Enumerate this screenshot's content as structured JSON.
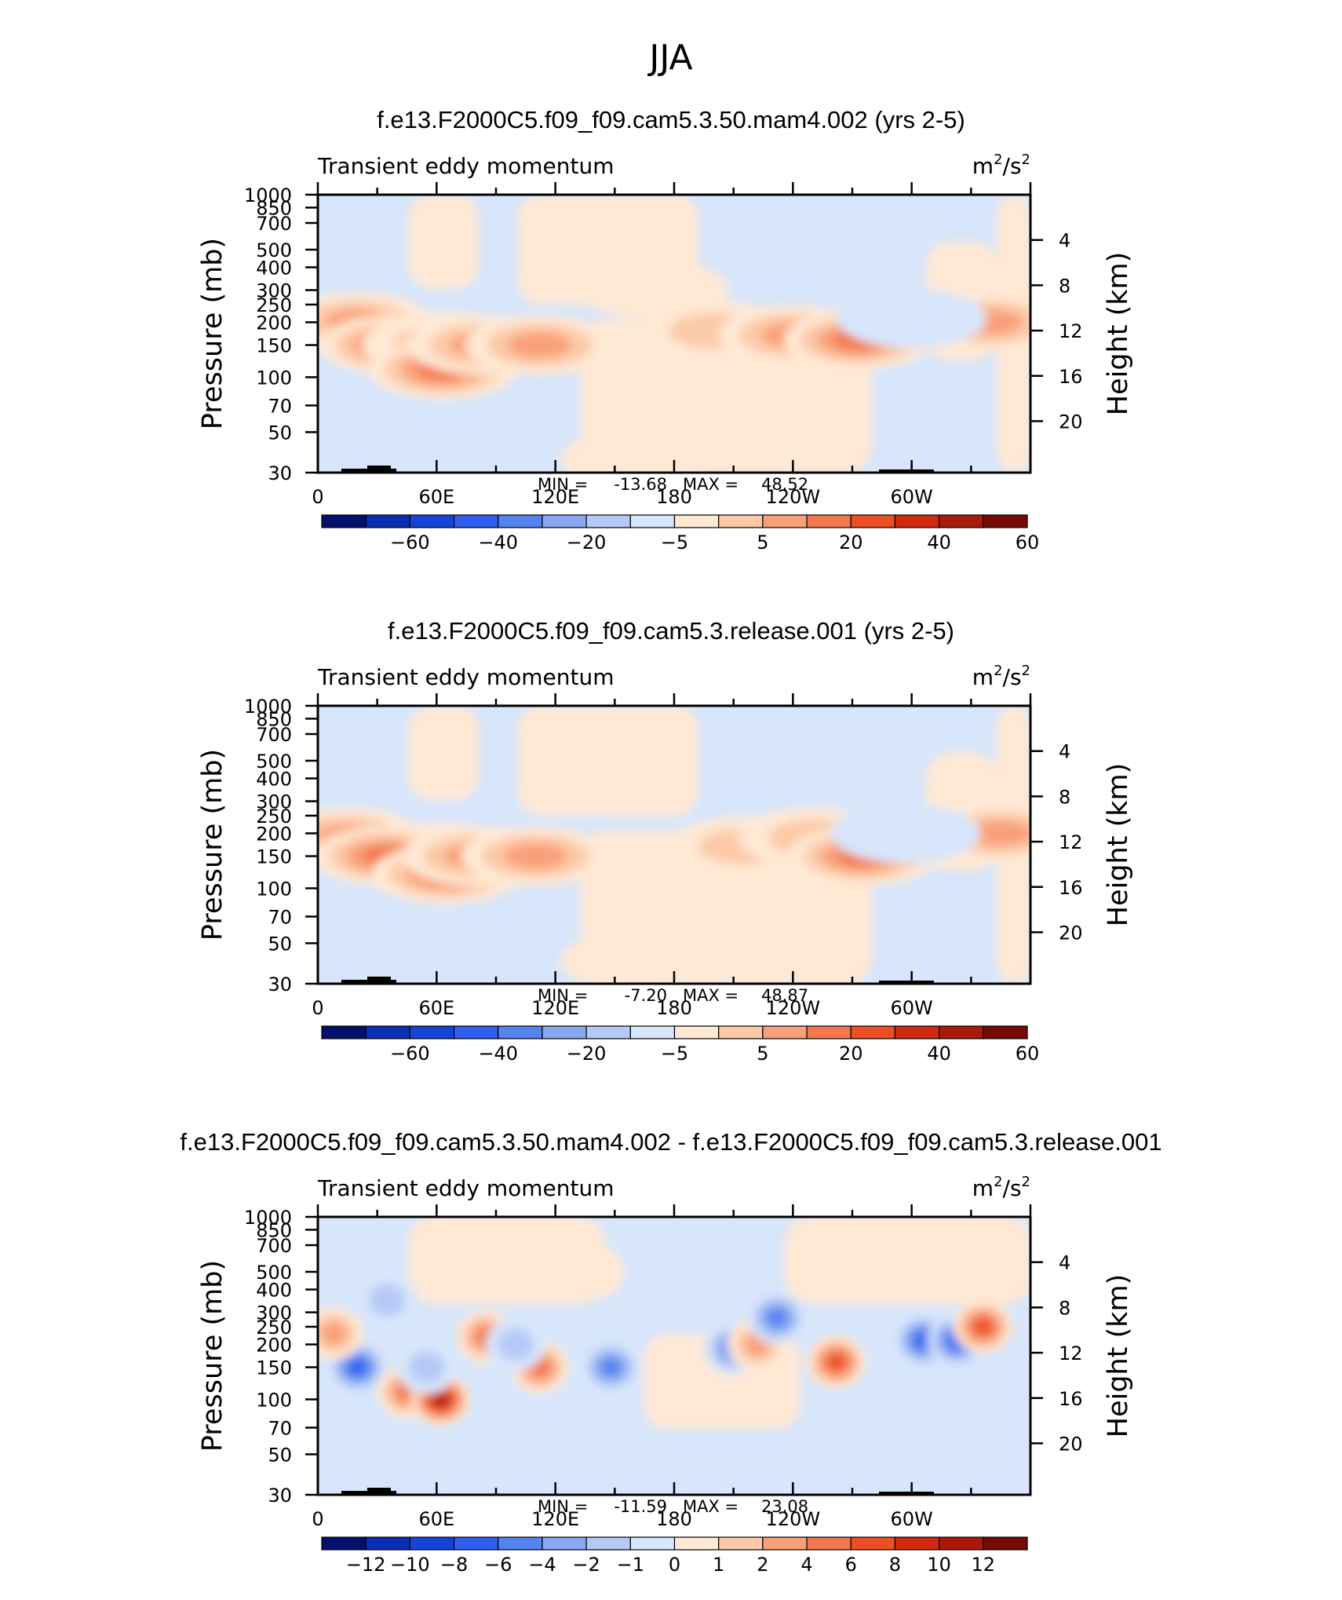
{
  "figure_title": "JJA",
  "chart_data": [
    {
      "type": "heatmap",
      "title": "f.e13.F2000C5.f09_f09.cam5.3.50.mam4.002 (yrs 2-5)",
      "left_string": "Transient eddy momentum",
      "units_base": "m",
      "units_exp1": "2",
      "units_mid": "/s",
      "units_exp2": "2",
      "xlabel": "",
      "ylabel": "Pressure (mb)",
      "y2label": "Height (km)",
      "x_tick_labels": [
        "0",
        "60E",
        "120E",
        "180",
        "120W",
        "60W"
      ],
      "y_ticks": [
        30,
        50,
        70,
        100,
        150,
        200,
        250,
        300,
        400,
        500,
        700,
        850,
        1000
      ],
      "y2_ticks": [
        4,
        8,
        12,
        16,
        20
      ],
      "ylim": [
        1000,
        30
      ],
      "xlim": [
        0,
        360
      ],
      "min_label": "MIN =",
      "min_value": "-13.68",
      "max_label": "MAX =",
      "max_value": "48.52",
      "colorbar_labels": [
        "-60",
        "-40",
        "-20",
        "-5",
        "5",
        "20",
        "40",
        "60"
      ],
      "colorbar_colors": [
        "#05106e",
        "#0a2fb4",
        "#1545d8",
        "#2e5ff2",
        "#5484f0",
        "#88a8f2",
        "#b5c9f7",
        "#d7e6fb",
        "#ffe8d4",
        "#fccaa8",
        "#f9a07a",
        "#f37850",
        "#eb4f23",
        "#d22a0f",
        "#aa1a0a",
        "#780a05"
      ],
      "hotspots": [
        {
          "lon": 20,
          "p": 200,
          "value": 30
        },
        {
          "lon": 38,
          "p": 150,
          "value": 35
        },
        {
          "lon": 60,
          "p": 150,
          "value": 20
        },
        {
          "lon": 63,
          "p": 110,
          "value": 40
        },
        {
          "lon": 83,
          "p": 150,
          "value": 25
        },
        {
          "lon": 112,
          "p": 150,
          "value": 30
        },
        {
          "lon": 200,
          "p": 180,
          "value": 15
        },
        {
          "lon": 240,
          "p": 170,
          "value": 25
        },
        {
          "lon": 273,
          "p": 160,
          "value": 35
        },
        {
          "lon": 340,
          "p": 200,
          "value": 30
        },
        {
          "lon": 300,
          "p": 210,
          "value": -8
        },
        {
          "lon": 170,
          "p": 300,
          "value": 5
        },
        {
          "lon": 160,
          "p": 35,
          "value": 5
        }
      ]
    },
    {
      "type": "heatmap",
      "title": "f.e13.F2000C5.f09_f09.cam5.3.release.001 (yrs 2-5)",
      "left_string": "Transient eddy momentum",
      "units_base": "m",
      "units_exp1": "2",
      "units_mid": "/s",
      "units_exp2": "2",
      "xlabel": "",
      "ylabel": "Pressure (mb)",
      "y2label": "Height (km)",
      "x_tick_labels": [
        "0",
        "60E",
        "120E",
        "180",
        "120W",
        "60W"
      ],
      "y_ticks": [
        30,
        50,
        70,
        100,
        150,
        200,
        250,
        300,
        400,
        500,
        700,
        850,
        1000
      ],
      "y2_ticks": [
        4,
        8,
        12,
        16,
        20
      ],
      "ylim": [
        1000,
        30
      ],
      "xlim": [
        0,
        360
      ],
      "min_label": "MIN =",
      "min_value": "-7.20",
      "max_label": "MAX =",
      "max_value": "48.87",
      "colorbar_labels": [
        "-60",
        "-40",
        "-20",
        "-5",
        "5",
        "20",
        "40",
        "60"
      ],
      "colorbar_colors": [
        "#05106e",
        "#0a2fb4",
        "#1545d8",
        "#2e5ff2",
        "#5484f0",
        "#88a8f2",
        "#b5c9f7",
        "#d7e6fb",
        "#ffe8d4",
        "#fccaa8",
        "#f9a07a",
        "#f37850",
        "#eb4f23",
        "#d22a0f",
        "#aa1a0a",
        "#780a05"
      ],
      "hotspots": [
        {
          "lon": 15,
          "p": 190,
          "value": 30
        },
        {
          "lon": 35,
          "p": 150,
          "value": 40
        },
        {
          "lon": 65,
          "p": 120,
          "value": 35
        },
        {
          "lon": 80,
          "p": 150,
          "value": 30
        },
        {
          "lon": 110,
          "p": 150,
          "value": 25
        },
        {
          "lon": 215,
          "p": 170,
          "value": 20
        },
        {
          "lon": 250,
          "p": 190,
          "value": 20
        },
        {
          "lon": 275,
          "p": 150,
          "value": 35
        },
        {
          "lon": 345,
          "p": 200,
          "value": 30
        },
        {
          "lon": 297,
          "p": 200,
          "value": -5
        },
        {
          "lon": 160,
          "p": 40,
          "value": 5
        }
      ]
    },
    {
      "type": "heatmap",
      "title": "f.e13.F2000C5.f09_f09.cam5.3.50.mam4.002 - f.e13.F2000C5.f09_f09.cam5.3.release.001",
      "left_string": "Transient eddy momentum",
      "units_base": "m",
      "units_exp1": "2",
      "units_mid": "/s",
      "units_exp2": "2",
      "xlabel": "",
      "ylabel": "Pressure (mb)",
      "y2label": "Height (km)",
      "x_tick_labels": [
        "0",
        "60E",
        "120E",
        "180",
        "120W",
        "60W"
      ],
      "y_ticks": [
        30,
        50,
        70,
        100,
        150,
        200,
        250,
        300,
        400,
        500,
        700,
        850,
        1000
      ],
      "y2_ticks": [
        4,
        8,
        12,
        16,
        20
      ],
      "ylim": [
        1000,
        30
      ],
      "xlim": [
        0,
        360
      ],
      "min_label": "MIN =",
      "min_value": "-11.59",
      "max_label": "MAX =",
      "max_value": "23.08",
      "colorbar_labels": [
        "-12",
        "-10",
        "-8",
        "-6",
        "-4",
        "-2",
        "-1",
        "0",
        "1",
        "2",
        "4",
        "6",
        "8",
        "10",
        "12"
      ],
      "colorbar_colors": [
        "#05106e",
        "#0a2fb4",
        "#1545d8",
        "#2e5ff2",
        "#5484f0",
        "#88a8f2",
        "#b5c9f7",
        "#d7e6fb",
        "#ffe8d4",
        "#fccaa8",
        "#f9a07a",
        "#f37850",
        "#eb4f23",
        "#d22a0f",
        "#aa1a0a",
        "#780a05"
      ],
      "hotspots": [
        {
          "lon": 20,
          "p": 150,
          "value": -9
        },
        {
          "lon": 8,
          "p": 230,
          "value": 5
        },
        {
          "lon": 45,
          "p": 110,
          "value": 7
        },
        {
          "lon": 62,
          "p": 100,
          "value": 16
        },
        {
          "lon": 85,
          "p": 220,
          "value": 7
        },
        {
          "lon": 112,
          "p": 150,
          "value": 8
        },
        {
          "lon": 148,
          "p": 150,
          "value": -7
        },
        {
          "lon": 100,
          "p": 200,
          "value": -3
        },
        {
          "lon": 210,
          "p": 190,
          "value": -8
        },
        {
          "lon": 222,
          "p": 200,
          "value": 5
        },
        {
          "lon": 232,
          "p": 280,
          "value": -7
        },
        {
          "lon": 262,
          "p": 160,
          "value": 10
        },
        {
          "lon": 306,
          "p": 210,
          "value": -9
        },
        {
          "lon": 323,
          "p": 210,
          "value": -10
        },
        {
          "lon": 336,
          "p": 250,
          "value": 9
        },
        {
          "lon": 55,
          "p": 150,
          "value": -4
        },
        {
          "lon": 35,
          "p": 350,
          "value": -3
        },
        {
          "lon": 140,
          "p": 500,
          "value": 2
        }
      ]
    }
  ]
}
